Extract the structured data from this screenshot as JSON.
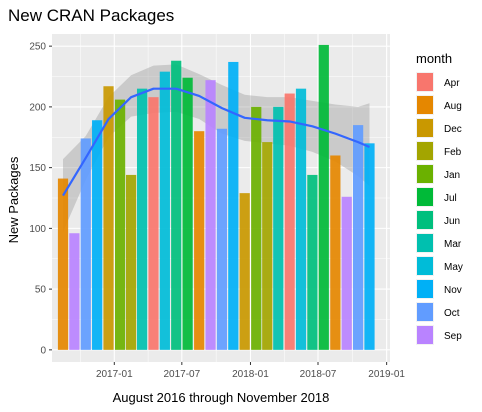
{
  "chart_data": {
    "type": "bar",
    "title": "New CRAN Packages",
    "xlabel": "August 2016 through November 2018",
    "ylabel": "New Packages",
    "xlim": [
      "2016-07-18",
      "2019-01-10"
    ],
    "ylim": [
      -10,
      260
    ],
    "x_ticks": [
      "2017-01",
      "2017-07",
      "2018-01",
      "2018-07",
      "2019-01"
    ],
    "y_ticks": [
      0,
      50,
      100,
      150,
      200,
      250
    ],
    "grid": true,
    "legend_title": "month",
    "legend_position": "right",
    "colors": {
      "Apr": "#F8766D",
      "Aug": "#E58700",
      "Dec": "#C99800",
      "Feb": "#A3A500",
      "Jan": "#6BB100",
      "Jul": "#00BA38",
      "Jun": "#00BF7D",
      "Mar": "#00C0AF",
      "May": "#00BCD8",
      "Nov": "#00B0F6",
      "Oct": "#619CFF",
      "Sep": "#B983FF"
    },
    "bars": [
      {
        "date": "2016-08",
        "month": "Aug",
        "value": 141
      },
      {
        "date": "2016-09",
        "month": "Sep",
        "value": 96
      },
      {
        "date": "2016-10",
        "month": "Oct",
        "value": 174
      },
      {
        "date": "2016-11",
        "month": "Nov",
        "value": 189
      },
      {
        "date": "2016-12",
        "month": "Dec",
        "value": 217
      },
      {
        "date": "2017-01",
        "month": "Jan",
        "value": 206
      },
      {
        "date": "2017-02",
        "month": "Feb",
        "value": 144
      },
      {
        "date": "2017-03",
        "month": "Mar",
        "value": 215
      },
      {
        "date": "2017-04",
        "month": "Apr",
        "value": 208
      },
      {
        "date": "2017-05",
        "month": "May",
        "value": 229
      },
      {
        "date": "2017-06",
        "month": "Jun",
        "value": 238
      },
      {
        "date": "2017-07",
        "month": "Jul",
        "value": 224
      },
      {
        "date": "2017-08",
        "month": "Aug",
        "value": 180
      },
      {
        "date": "2017-09",
        "month": "Sep",
        "value": 222
      },
      {
        "date": "2017-10",
        "month": "Oct",
        "value": 182
      },
      {
        "date": "2017-11",
        "month": "Nov",
        "value": 237
      },
      {
        "date": "2017-12",
        "month": "Dec",
        "value": 129
      },
      {
        "date": "2018-01",
        "month": "Jan",
        "value": 200
      },
      {
        "date": "2018-02",
        "month": "Feb",
        "value": 171
      },
      {
        "date": "2018-03",
        "month": "Mar",
        "value": 200
      },
      {
        "date": "2018-04",
        "month": "Apr",
        "value": 211
      },
      {
        "date": "2018-05",
        "month": "May",
        "value": 215
      },
      {
        "date": "2018-06",
        "month": "Jun",
        "value": 144
      },
      {
        "date": "2018-07",
        "month": "Jul",
        "value": 251
      },
      {
        "date": "2018-08",
        "month": "Aug",
        "value": 160
      },
      {
        "date": "2018-09",
        "month": "Sep",
        "value": 126
      },
      {
        "date": "2018-10",
        "month": "Oct",
        "value": 185
      },
      {
        "date": "2018-11",
        "month": "Nov",
        "value": 170
      }
    ],
    "smooth": {
      "color": "#3366FF",
      "band_color": "#999999",
      "points": [
        {
          "date": "2016-08",
          "y": 127,
          "lo": 97,
          "hi": 157
        },
        {
          "date": "2016-10",
          "y": 158,
          "lo": 140,
          "hi": 176
        },
        {
          "date": "2016-12",
          "y": 190,
          "lo": 175,
          "hi": 208
        },
        {
          "date": "2017-02",
          "y": 208,
          "lo": 192,
          "hi": 226
        },
        {
          "date": "2017-04",
          "y": 215,
          "lo": 195,
          "hi": 234
        },
        {
          "date": "2017-06",
          "y": 215,
          "lo": 196,
          "hi": 235
        },
        {
          "date": "2017-08",
          "y": 209,
          "lo": 190,
          "hi": 227
        },
        {
          "date": "2017-10",
          "y": 199,
          "lo": 178,
          "hi": 218
        },
        {
          "date": "2017-12",
          "y": 191,
          "lo": 172,
          "hi": 210
        },
        {
          "date": "2018-02",
          "y": 189,
          "lo": 170,
          "hi": 208
        },
        {
          "date": "2018-04",
          "y": 188,
          "lo": 168,
          "hi": 208
        },
        {
          "date": "2018-06",
          "y": 184,
          "lo": 163,
          "hi": 205
        },
        {
          "date": "2018-08",
          "y": 178,
          "lo": 155,
          "hi": 202
        },
        {
          "date": "2018-10",
          "y": 171,
          "lo": 143,
          "hi": 200
        },
        {
          "date": "2018-11",
          "y": 167,
          "lo": 135,
          "hi": 203
        }
      ]
    },
    "legend": [
      "Apr",
      "Aug",
      "Dec",
      "Feb",
      "Jan",
      "Jul",
      "Jun",
      "Mar",
      "May",
      "Nov",
      "Oct",
      "Sep"
    ]
  }
}
